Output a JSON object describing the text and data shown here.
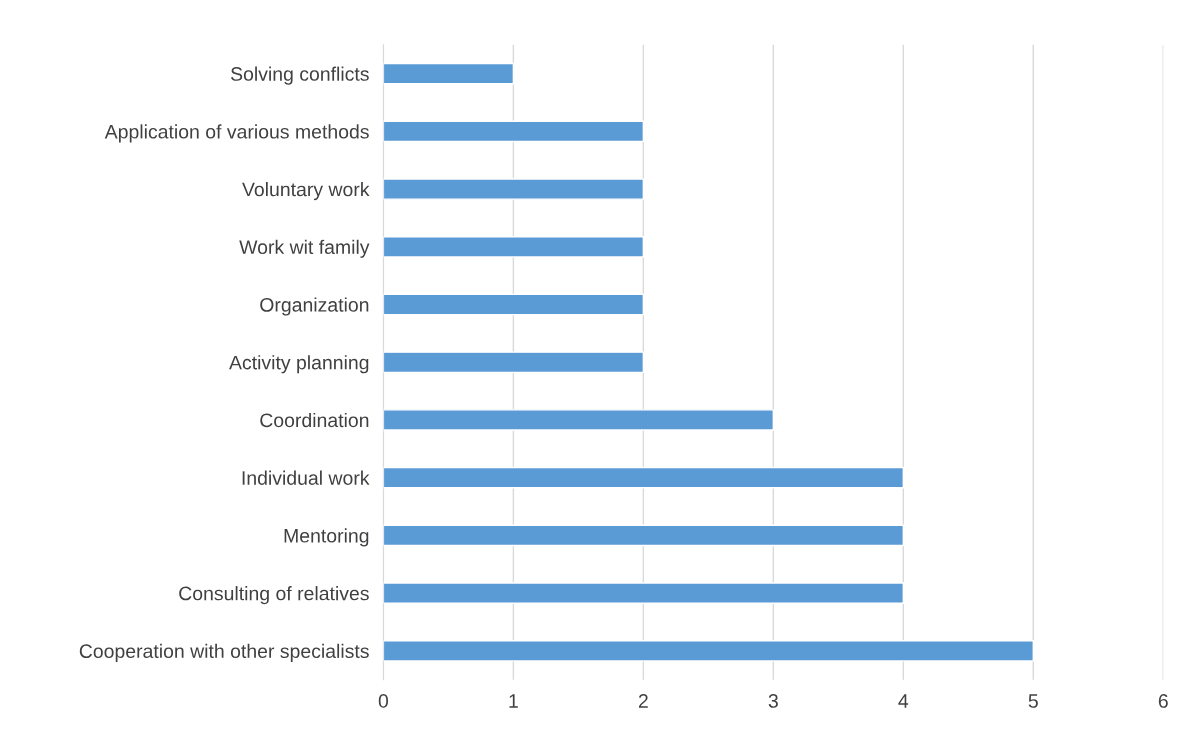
{
  "chart_data": {
    "type": "bar",
    "orientation": "horizontal",
    "categories": [
      "Solving conflicts",
      "Application of various methods",
      "Voluntary work",
      "Work wit family",
      "Organization",
      "Activity planning",
      "Coordination",
      "Individual work",
      "Mentoring",
      "Consulting of relatives",
      "Cooperation with other specialists"
    ],
    "values": [
      1,
      2,
      2,
      2,
      2,
      2,
      3,
      4,
      4,
      4,
      5
    ],
    "color": "#5b9bd5",
    "xlim": [
      0,
      6
    ],
    "xticks": [
      0,
      1,
      2,
      3,
      4,
      5,
      6
    ],
    "grid": "x"
  }
}
